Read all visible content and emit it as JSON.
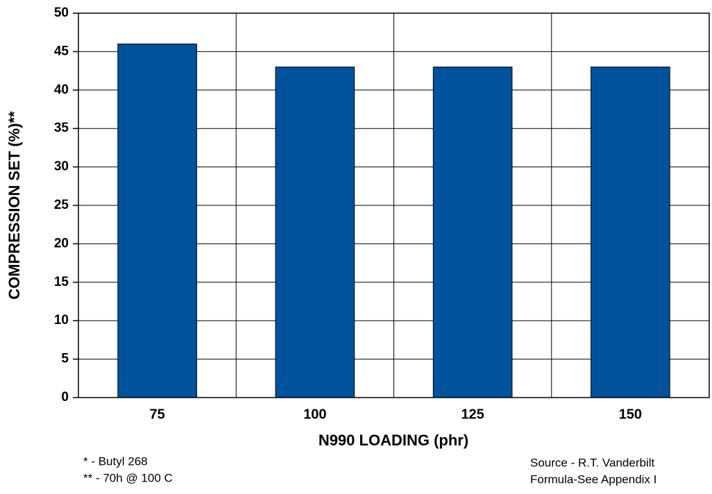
{
  "chart_data": {
    "type": "bar",
    "x_label": "N990 LOADING (phr)",
    "y_label": "COMPRESSION SET (%)**",
    "categories": [
      "75",
      "100",
      "125",
      "150"
    ],
    "values": [
      46,
      43,
      43,
      43
    ],
    "color": "#00529c",
    "ylim": [
      0,
      50
    ],
    "yticks": [
      0,
      5,
      10,
      15,
      20,
      25,
      30,
      35,
      40,
      45,
      50
    ],
    "grid": true,
    "notes": [
      "* - Butyl 268",
      "** - 70h @ 100 C"
    ],
    "source": [
      "Source - R.T. Vanderbilt",
      "Formula-See Appendix I"
    ]
  }
}
